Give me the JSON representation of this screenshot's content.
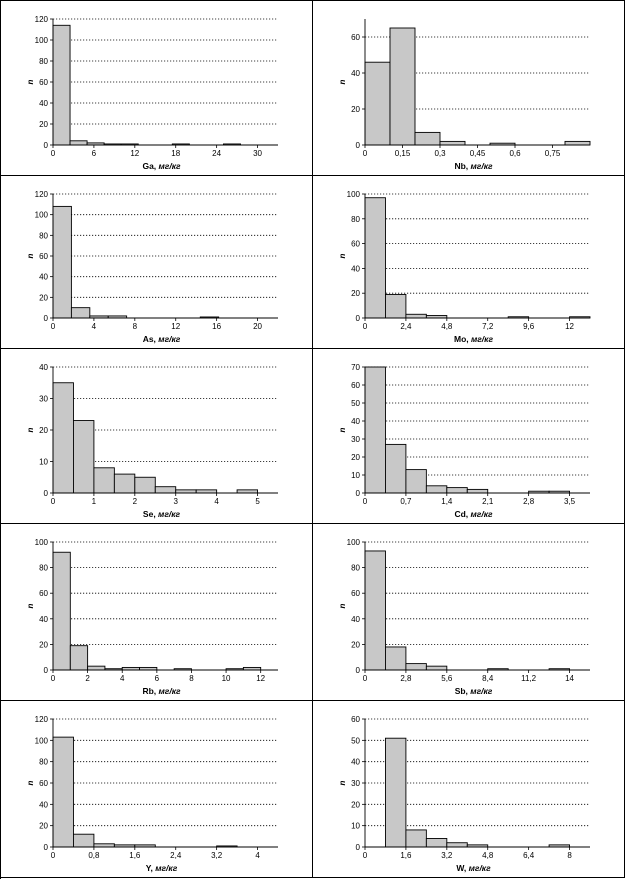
{
  "chart_data": [
    {
      "type": "bar",
      "element": "Ga",
      "unit": "мг/кг",
      "ylabel": "n",
      "bin_width": 2.5,
      "values": [
        114,
        4,
        2,
        1,
        1,
        0,
        0,
        1,
        0,
        0,
        1,
        0,
        0
      ],
      "xlim": [
        0,
        33
      ],
      "ylim": [
        0,
        120
      ],
      "xticks": [
        0,
        6,
        12,
        18,
        24,
        30
      ],
      "xtick_labels": [
        "0",
        "6",
        "12",
        "18",
        "24",
        "30"
      ],
      "yticks": [
        0,
        20,
        40,
        60,
        80,
        100,
        120
      ],
      "grid": true
    },
    {
      "type": "bar",
      "element": "Nb",
      "unit": "мг/кг",
      "ylabel": "n",
      "bin_width": 0.1,
      "values": [
        46,
        65,
        7,
        2,
        0,
        1,
        0,
        0,
        2
      ],
      "xlim": [
        0,
        0.9
      ],
      "ylim": [
        0,
        70
      ],
      "xticks": [
        0,
        0.15,
        0.3,
        0.45,
        0.6,
        0.75
      ],
      "xtick_labels": [
        "0",
        "0,15",
        "0,3",
        "0,45",
        "0,6",
        "0,75"
      ],
      "yticks": [
        0,
        20,
        40,
        60
      ],
      "grid": true
    },
    {
      "type": "bar",
      "element": "As",
      "unit": "мг/кг",
      "ylabel": "n",
      "bin_width": 1.8,
      "values": [
        108,
        10,
        2,
        2,
        0,
        0,
        0,
        0,
        1,
        0,
        0,
        0
      ],
      "xlim": [
        0,
        22
      ],
      "ylim": [
        0,
        120
      ],
      "xticks": [
        0,
        4,
        8,
        12,
        16,
        20
      ],
      "xtick_labels": [
        "0",
        "4",
        "8",
        "12",
        "16",
        "20"
      ],
      "yticks": [
        0,
        20,
        40,
        60,
        80,
        100,
        120
      ],
      "grid": true
    },
    {
      "type": "bar",
      "element": "Mo",
      "unit": "мг/кг",
      "ylabel": "n",
      "bin_width": 1.2,
      "values": [
        97,
        19,
        3,
        2,
        0,
        0,
        0,
        1,
        0,
        0,
        1
      ],
      "xlim": [
        0,
        13.2
      ],
      "ylim": [
        0,
        100
      ],
      "xticks": [
        0,
        2.4,
        4.8,
        7.2,
        9.6,
        12
      ],
      "xtick_labels": [
        "0",
        "2,4",
        "4,8",
        "7,2",
        "9,6",
        "12"
      ],
      "yticks": [
        0,
        20,
        40,
        60,
        80,
        100
      ],
      "grid": true
    },
    {
      "type": "bar",
      "element": "Se",
      "unit": "мг/кг",
      "ylabel": "n",
      "bin_width": 0.5,
      "values": [
        35,
        23,
        8,
        6,
        5,
        2,
        1,
        1,
        0,
        1
      ],
      "xlim": [
        0,
        5.5
      ],
      "ylim": [
        0,
        40
      ],
      "xticks": [
        0,
        1,
        2,
        3,
        4,
        5
      ],
      "xtick_labels": [
        "0",
        "1",
        "2",
        "3",
        "4",
        "5"
      ],
      "yticks": [
        0,
        10,
        20,
        30,
        40
      ],
      "grid": true
    },
    {
      "type": "bar",
      "element": "Cd",
      "unit": "мг/кг",
      "ylabel": "n",
      "bin_width": 0.35,
      "values": [
        70,
        27,
        13,
        4,
        3,
        2,
        0,
        0,
        1,
        1
      ],
      "xlim": [
        0,
        3.85
      ],
      "ylim": [
        0,
        70
      ],
      "xticks": [
        0,
        0.7,
        1.4,
        2.1,
        2.8,
        3.5
      ],
      "xtick_labels": [
        "0",
        "0,7",
        "1,4",
        "2,1",
        "2,8",
        "3,5"
      ],
      "yticks": [
        0,
        10,
        20,
        30,
        40,
        50,
        60,
        70
      ],
      "grid": true
    },
    {
      "type": "bar",
      "element": "Rb",
      "unit": "мг/кг",
      "ylabel": "n",
      "bin_width": 1,
      "values": [
        92,
        19,
        3,
        1,
        2,
        2,
        0,
        1,
        0,
        0,
        1,
        2
      ],
      "xlim": [
        0,
        13
      ],
      "ylim": [
        0,
        100
      ],
      "xticks": [
        0,
        2,
        4,
        6,
        8,
        10,
        12
      ],
      "xtick_labels": [
        "0",
        "2",
        "4",
        "6",
        "8",
        "10",
        "12"
      ],
      "yticks": [
        0,
        20,
        40,
        60,
        80,
        100
      ],
      "grid": true
    },
    {
      "type": "bar",
      "element": "Sb",
      "unit": "мг/кг",
      "ylabel": "n",
      "bin_width": 1.4,
      "values": [
        93,
        18,
        5,
        3,
        0,
        0,
        1,
        0,
        0,
        1
      ],
      "xlim": [
        0,
        15.4
      ],
      "ylim": [
        0,
        100
      ],
      "xticks": [
        0,
        2.8,
        5.6,
        8.4,
        11.2,
        14
      ],
      "xtick_labels": [
        "0",
        "2,8",
        "5,6",
        "8,4",
        "11,2",
        "14"
      ],
      "yticks": [
        0,
        20,
        40,
        60,
        80,
        100
      ],
      "grid": true
    },
    {
      "type": "bar",
      "element": "Y",
      "unit": "мг/кг",
      "ylabel": "n",
      "bin_width": 0.4,
      "values": [
        103,
        12,
        3,
        2,
        2,
        0,
        0,
        0,
        1,
        0
      ],
      "xlim": [
        0,
        4.4
      ],
      "ylim": [
        0,
        120
      ],
      "xticks": [
        0,
        0.8,
        1.6,
        2.4,
        3.2,
        4
      ],
      "xtick_labels": [
        "0",
        "0,8",
        "1,6",
        "2,4",
        "3,2",
        "4"
      ],
      "yticks": [
        0,
        20,
        40,
        60,
        80,
        100,
        120
      ],
      "grid": true
    },
    {
      "type": "bar",
      "element": "W",
      "unit": "мг/кг",
      "ylabel": "n",
      "bin_width": 0.8,
      "bin_start": 0.8,
      "values": [
        51,
        8,
        4,
        2,
        1,
        0,
        0,
        0,
        1
      ],
      "xlim": [
        0,
        8.8
      ],
      "ylim": [
        0,
        60
      ],
      "xticks": [
        0,
        1.6,
        3.2,
        4.8,
        6.4,
        8
      ],
      "xtick_labels": [
        "0",
        "1,6",
        "3,2",
        "4,8",
        "6,4",
        "8"
      ],
      "yticks": [
        0,
        10,
        20,
        30,
        40,
        50,
        60
      ],
      "grid": true
    }
  ]
}
